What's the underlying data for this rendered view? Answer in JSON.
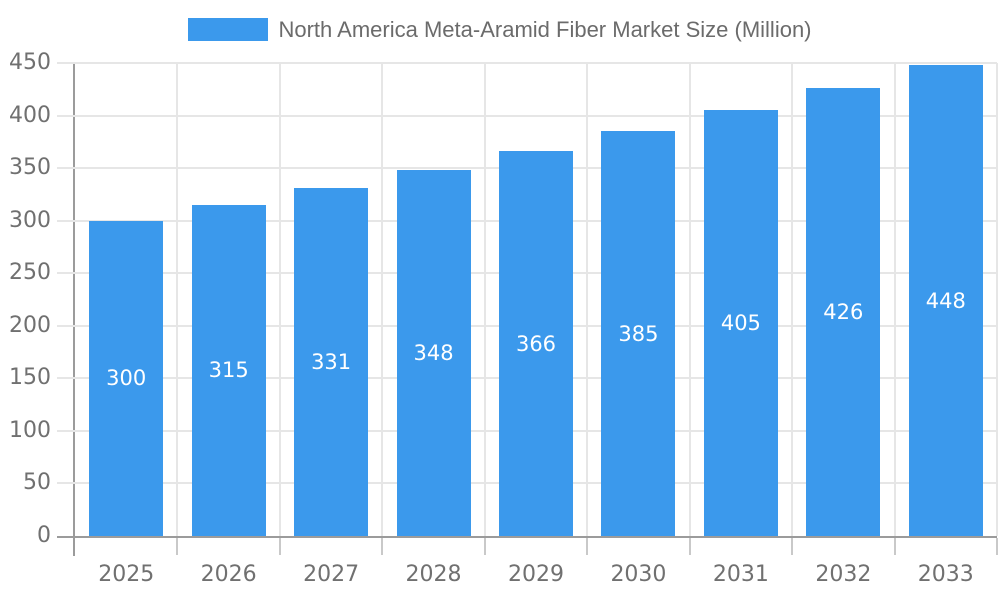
{
  "legend": {
    "label": "North America Meta-Aramid Fiber Market Size (Million)"
  },
  "chart_data": {
    "type": "bar",
    "title": "North America Meta-Aramid Fiber Market Size (Million)",
    "categories": [
      "2025",
      "2026",
      "2027",
      "2028",
      "2029",
      "2030",
      "2031",
      "2032",
      "2033"
    ],
    "values": [
      300,
      315,
      331,
      348,
      366,
      385,
      405,
      426,
      448
    ],
    "xlabel": "",
    "ylabel": "",
    "ylim": [
      0,
      450
    ],
    "yticks": [
      0,
      50,
      100,
      150,
      200,
      250,
      300,
      350,
      400,
      450
    ],
    "grid": true,
    "legend_position": "top",
    "bar_color": "#3B99EC",
    "bar_label_color": "#FFFFFF",
    "axis_color": "#9B9B9B",
    "gridline_color": "#E6E6E6",
    "tick_color": "#C9C9C9",
    "label_color": "#707070"
  }
}
